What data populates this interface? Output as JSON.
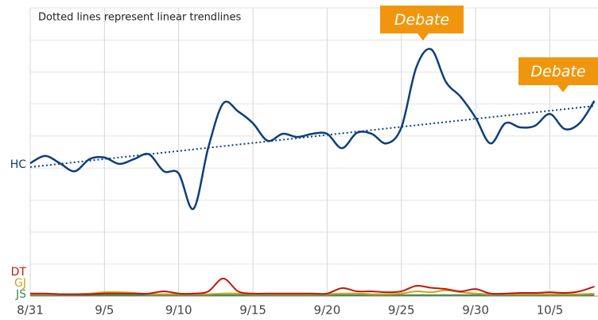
{
  "chart_data": {
    "type": "line",
    "annotation": "Dotted lines represent linear trendlines",
    "callouts": [
      "Debate",
      "Debate"
    ],
    "categories": [
      "8/31",
      null,
      null,
      null,
      null,
      "9/5",
      null,
      null,
      null,
      null,
      "9/10",
      null,
      null,
      null,
      null,
      "9/15",
      null,
      null,
      null,
      null,
      "9/20",
      null,
      null,
      null,
      null,
      "9/25",
      null,
      null,
      null,
      null,
      "9/30",
      null,
      null,
      null,
      null,
      "10/5",
      null,
      null,
      null
    ],
    "ylim": [
      0,
      90
    ],
    "yticks": [
      0,
      10,
      20,
      30,
      40,
      50,
      60,
      70,
      80,
      90
    ],
    "grid": true,
    "series": [
      {
        "name": "HC",
        "color": "#0d3f7a",
        "trendline": [
          40.3,
          59.4
        ],
        "values": [
          41.5,
          43.8,
          41.5,
          39,
          42.8,
          43.3,
          41.3,
          42.8,
          44.3,
          39,
          38.3,
          27.3,
          46.5,
          60.2,
          57.7,
          54,
          48.5,
          50.7,
          49.7,
          50.7,
          50.7,
          46.2,
          51,
          50.7,
          47.7,
          52.7,
          71.4,
          77.1,
          66.9,
          62.2,
          55.7,
          47.7,
          54,
          52.7,
          53.2,
          56.9,
          52.2,
          54,
          61
        ]
      },
      {
        "name": "DT",
        "color": "#c0170f",
        "values": [
          0.8,
          0.8,
          0.6,
          0.6,
          0.6,
          0.8,
          0.8,
          0.8,
          0.8,
          1.5,
          0.8,
          0.8,
          1.5,
          5.5,
          1.5,
          0.8,
          0.8,
          0.8,
          0.8,
          0.8,
          0.8,
          2.5,
          1.5,
          1.5,
          1.2,
          1.5,
          3.2,
          2.6,
          2.2,
          1.5,
          2.2,
          0.8,
          0.8,
          1,
          1,
          1.2,
          1,
          1.5,
          3
        ]
      },
      {
        "name": "GJ",
        "color": "#d4a017",
        "values": [
          0.6,
          0.6,
          0.6,
          0.6,
          0.8,
          1.2,
          1.2,
          1,
          0.6,
          0.6,
          0.6,
          0.6,
          0.6,
          0.8,
          0.8,
          0.6,
          0.6,
          0.6,
          0.6,
          0.6,
          0.6,
          0.8,
          0.8,
          0.6,
          0.6,
          0.8,
          1.5,
          1.2,
          1.8,
          1.2,
          0.8,
          0.6,
          0.6,
          0.6,
          0.6,
          0.6,
          0.6,
          0.6,
          0.8
        ]
      },
      {
        "name": "JS",
        "color": "#3b8a4a",
        "values": [
          0.3,
          0.3,
          0.3,
          0.3,
          0.3,
          0.3,
          0.3,
          0.3,
          0.3,
          0.3,
          0.3,
          0.3,
          0.3,
          0.3,
          0.3,
          0.3,
          0.3,
          0.3,
          0.3,
          0.3,
          0.3,
          0.3,
          0.3,
          0.3,
          0.3,
          0.3,
          0.3,
          0.3,
          0.3,
          0.3,
          0.3,
          0.3,
          0.3,
          0.3,
          0.3,
          0.3,
          0.3,
          0.3,
          0.3
        ]
      }
    ]
  }
}
